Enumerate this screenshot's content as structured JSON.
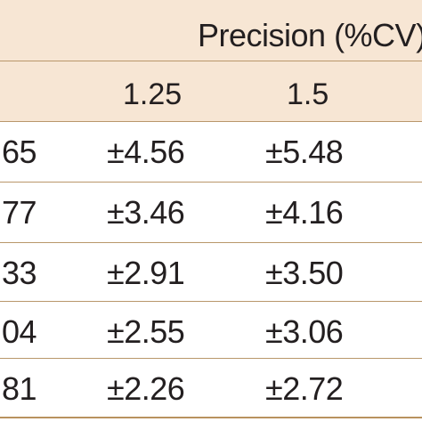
{
  "table": {
    "header_group_label": "Precision (%CV)",
    "columns": [
      "1.25",
      "1.5"
    ],
    "rows": [
      {
        "partial": "65",
        "v125": "±4.56",
        "v15": "±5.48"
      },
      {
        "partial": "77",
        "v125": "±3.46",
        "v15": "±4.16"
      },
      {
        "partial": "33",
        "v125": "±2.91",
        "v15": "±3.50"
      },
      {
        "partial": "04",
        "v125": "±2.55",
        "v15": "±3.06"
      },
      {
        "partial": "81",
        "v125": "±2.26",
        "v15": "±2.72"
      }
    ]
  },
  "colors": {
    "header_background": "#f7e6d4",
    "rule": "#b8925f",
    "text": "#231f20"
  }
}
